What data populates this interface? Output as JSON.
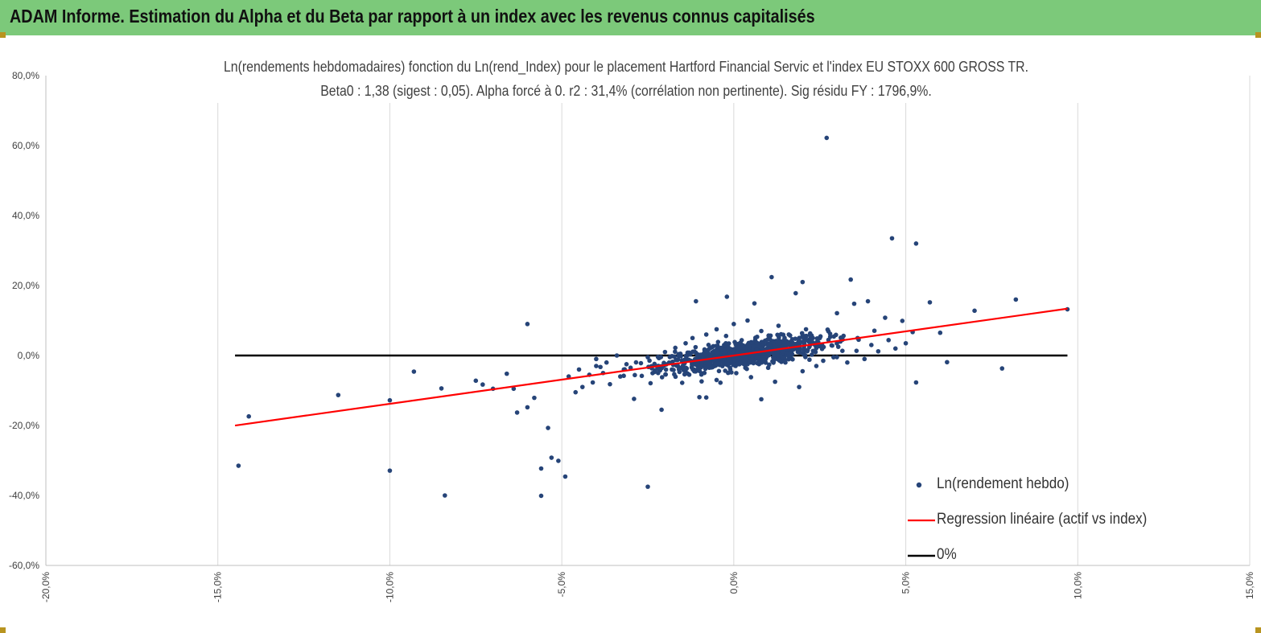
{
  "header": {
    "title": "ADAM Informe. Estimation du Alpha et du Beta par rapport à un index avec les revenus connus capitalisés"
  },
  "chart_data": {
    "type": "scatter",
    "title_line1": "Ln(rendements hebdomadaires) fonction du Ln(rend_Index) pour le placement Hartford Financial Servic et l'index EU STOXX 600 GROSS TR.",
    "title_line2": "Beta0 : 1,38 (sigest : 0,05). Alpha forcé à 0. r2 : 31,4% (corrélation non pertinente). Sig résidu FY : 1796,9%.",
    "xlim": [
      -0.2,
      0.15
    ],
    "ylim": [
      -0.6,
      0.8
    ],
    "x_ticks": [
      -0.2,
      -0.15,
      -0.1,
      -0.05,
      0.0,
      0.05,
      0.1,
      0.15
    ],
    "x_tick_labels": [
      "-20,0%",
      "-15,0%",
      "-10,0%",
      "-5,0%",
      "0,0%",
      "5,0%",
      "10,0%",
      "15,0%"
    ],
    "y_ticks": [
      0.8,
      0.6,
      0.4,
      0.2,
      0.0,
      -0.2,
      -0.4,
      -0.6
    ],
    "y_tick_labels": [
      "80,0%",
      "60,0%",
      "40,0%",
      "20,0%",
      "0,0%",
      "-20,0%",
      "-40,0%",
      "-60,0%"
    ],
    "grid": {
      "vertical": true,
      "horizontal": false
    },
    "legend_position": "bottom-right",
    "colors": {
      "points": "#264478",
      "regression": "#ff0000",
      "zero_line": "#000000",
      "grid": "#d9d9d9"
    },
    "series": [
      {
        "name": "Ln(rendement hebdo)",
        "kind": "scatter",
        "points": [
          [
            0.027,
            0.622
          ],
          [
            0.046,
            0.335
          ],
          [
            0.053,
            0.32
          ],
          [
            0.034,
            0.217
          ],
          [
            0.02,
            0.21
          ],
          [
            0.011,
            0.224
          ],
          [
            0.082,
            0.16
          ],
          [
            0.057,
            0.152
          ],
          [
            0.07,
            0.128
          ],
          [
            0.097,
            0.132
          ],
          [
            0.039,
            0.155
          ],
          [
            0.018,
            0.178
          ],
          [
            -0.002,
            0.168
          ],
          [
            -0.011,
            0.155
          ],
          [
            0.006,
            0.149
          ],
          [
            0.035,
            0.148
          ],
          [
            0.049,
            0.099
          ],
          [
            0.03,
            0.121
          ],
          [
            0.044,
            0.108
          ],
          [
            0.06,
            0.065
          ],
          [
            0.052,
            0.067
          ],
          [
            0.045,
            0.044
          ],
          [
            0.062,
            -0.019
          ],
          [
            0.078,
            -0.037
          ],
          [
            0.053,
            -0.077
          ],
          [
            -0.06,
            0.09
          ],
          [
            -0.144,
            -0.315
          ],
          [
            -0.141,
            -0.174
          ],
          [
            -0.115,
            -0.113
          ],
          [
            -0.1,
            -0.329
          ],
          [
            -0.1,
            -0.128
          ],
          [
            -0.093,
            -0.046
          ],
          [
            -0.085,
            -0.094
          ],
          [
            -0.084,
            -0.4
          ],
          [
            -0.075,
            -0.072
          ],
          [
            -0.073,
            -0.083
          ],
          [
            -0.07,
            -0.095
          ],
          [
            -0.066,
            -0.052
          ],
          [
            -0.064,
            -0.095
          ],
          [
            -0.063,
            -0.163
          ],
          [
            -0.06,
            -0.148
          ],
          [
            -0.058,
            -0.121
          ],
          [
            -0.056,
            -0.401
          ],
          [
            -0.056,
            -0.323
          ],
          [
            -0.054,
            -0.207
          ],
          [
            -0.053,
            -0.292
          ],
          [
            -0.051,
            -0.301
          ],
          [
            -0.049,
            -0.346
          ],
          [
            -0.048,
            -0.06
          ],
          [
            -0.046,
            -0.105
          ],
          [
            -0.025,
            -0.375
          ],
          [
            -0.044,
            -0.09
          ],
          [
            -0.041,
            -0.077
          ],
          [
            -0.036,
            -0.082
          ],
          [
            -0.029,
            -0.124
          ],
          [
            -0.021,
            -0.155
          ],
          [
            -0.032,
            -0.058
          ],
          [
            -0.015,
            -0.078
          ],
          [
            -0.01,
            -0.119
          ],
          [
            -0.008,
            -0.12
          ],
          [
            0.008,
            -0.125
          ],
          [
            0.019,
            -0.09
          ],
          [
            -0.005,
            -0.07
          ],
          [
            0.005,
            -0.062
          ],
          [
            0.012,
            -0.075
          ],
          [
            -0.03,
            -0.035
          ],
          [
            -0.027,
            -0.022
          ],
          [
            -0.025,
            -0.005
          ],
          [
            -0.02,
            0.01
          ],
          [
            -0.017,
            0.022
          ],
          [
            -0.014,
            0.035
          ],
          [
            -0.012,
            0.05
          ],
          [
            -0.008,
            0.06
          ],
          [
            -0.005,
            0.075
          ],
          [
            0.0,
            0.09
          ],
          [
            0.004,
            0.1
          ],
          [
            0.008,
            0.07
          ],
          [
            0.013,
            0.085
          ],
          [
            0.016,
            0.06
          ],
          [
            0.021,
            0.075
          ],
          [
            0.025,
            0.05
          ],
          [
            0.028,
            0.062
          ],
          [
            0.031,
            0.04
          ],
          [
            0.036,
            0.05
          ],
          [
            0.04,
            0.03
          ],
          [
            0.042,
            0.012
          ],
          [
            0.038,
            -0.01
          ],
          [
            0.033,
            -0.02
          ],
          [
            0.029,
            -0.005
          ],
          [
            0.024,
            -0.03
          ],
          [
            0.022,
            -0.012
          ],
          [
            -0.04,
            -0.03
          ],
          [
            -0.037,
            -0.02
          ],
          [
            -0.034,
            0.0
          ],
          [
            -0.038,
            -0.05
          ],
          [
            -0.033,
            -0.06
          ],
          [
            -0.042,
            -0.055
          ],
          [
            -0.022,
            -0.05
          ],
          [
            -0.018,
            -0.04
          ],
          [
            -0.001,
            -0.04
          ],
          [
            0.003,
            -0.025
          ],
          [
            0.01,
            -0.035
          ],
          [
            0.015,
            -0.02
          ],
          [
            0.02,
            -0.045
          ],
          [
            0.026,
            -0.015
          ],
          [
            -0.045,
            -0.04
          ],
          [
            -0.04,
            -0.01
          ],
          [
            0.047,
            0.02
          ],
          [
            0.05,
            0.035
          ]
        ],
        "cloud": {
          "x_mean": 0.003,
          "x_sd": 0.012,
          "beta": 1.38,
          "resid_sd": 0.03,
          "count": 900
        }
      },
      {
        "name": "Regression linéaire (actif vs index)",
        "kind": "line",
        "beta": 1.38,
        "alpha": 0,
        "x_range": [
          -0.145,
          0.097
        ]
      },
      {
        "name": "0%",
        "kind": "line",
        "y": 0,
        "x_range": [
          -0.145,
          0.097
        ]
      }
    ]
  }
}
